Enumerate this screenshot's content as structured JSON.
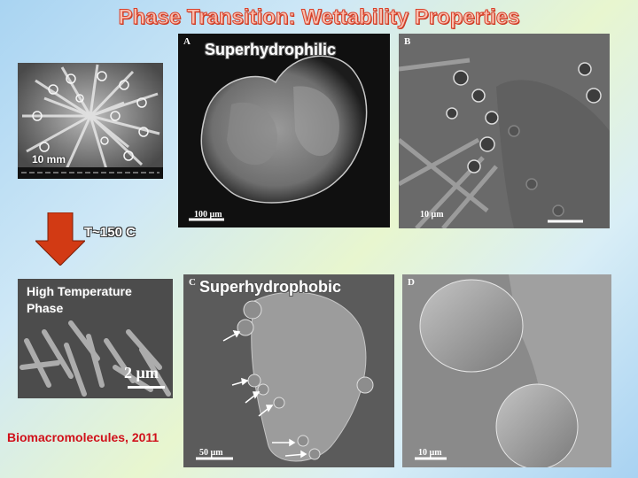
{
  "slide": {
    "title": "Phase Transition: Wettability Properties",
    "temperature_label": "T~150 C",
    "citation": "Biomacromolecules, 2011"
  },
  "panels": {
    "top_left": {
      "scale_label": "10 mm"
    },
    "low_right": {
      "label_line1": "High Temperature",
      "label_line2": "Phase",
      "scale_label": "2 µm"
    },
    "A": {
      "letter": "A",
      "overlay": "Superhydrophilic",
      "scale_label": "100 µm"
    },
    "B": {
      "letter": "B",
      "scale_label": "10 µm"
    },
    "C": {
      "letter": "C",
      "overlay": "Superhydrophobic",
      "scale_label": "50 µm"
    },
    "D": {
      "letter": "D",
      "scale_label": "10 µm"
    }
  },
  "colors": {
    "title_fill": "#f8c0b0",
    "title_stroke": "#d8402a",
    "arrow": "#d23a14",
    "citation": "#d0101a"
  }
}
